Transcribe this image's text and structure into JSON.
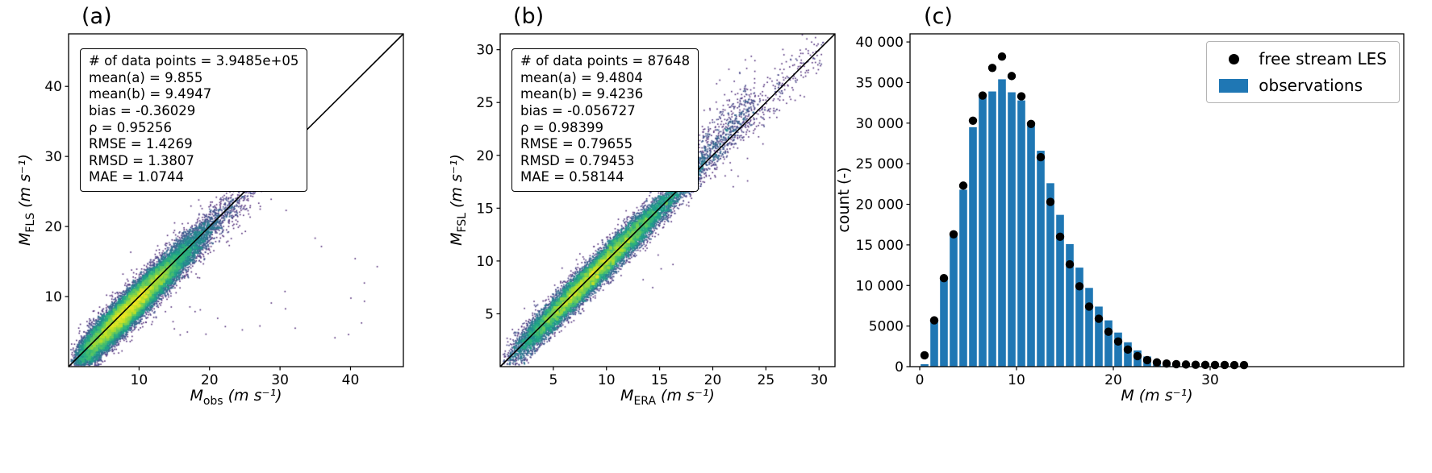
{
  "chart_data": [
    {
      "id": "a",
      "type": "scatter",
      "subtype": "density_scatter",
      "title": "(a)",
      "xlabel": {
        "var": "M",
        "sub": "obs",
        "units": "(m s⁻¹)"
      },
      "ylabel": {
        "var": "M",
        "sub": "FLS",
        "units": "(m s⁻¹)"
      },
      "xlim": [
        0,
        47.5
      ],
      "ylim": [
        0,
        47.5
      ],
      "xtick_values": [
        10,
        20,
        30,
        40
      ],
      "xtick_labels": [
        "10",
        "20",
        "30",
        "40"
      ],
      "ytick_values": [
        10,
        20,
        30,
        40
      ],
      "ytick_labels": [
        "10",
        "20",
        "30",
        "40"
      ],
      "identity_line": true,
      "colormap": "viridis",
      "stats_box": [
        "# of data points = 3.9485e+05",
        "mean(a) = 9.855",
        "mean(b) = 9.4947",
        "bias = -0.36029",
        "ρ = 0.95256",
        "RMSE = 1.4269",
        "RMSD = 1.3807",
        "MAE = 1.0744"
      ],
      "stats": {
        "n_points": 394850,
        "mean_a": 9.855,
        "mean_b": 9.4947,
        "bias": -0.36029,
        "rho": 0.95256,
        "rmse": 1.4269,
        "rmsd": 1.3807,
        "mae": 1.0744
      }
    },
    {
      "id": "b",
      "type": "scatter",
      "subtype": "density_scatter",
      "title": "(b)",
      "xlabel": {
        "var": "M",
        "sub": "ERA",
        "units": "(m s⁻¹)"
      },
      "ylabel": {
        "var": "M",
        "sub": "FSL",
        "units": "(m s⁻¹)"
      },
      "xlim": [
        0,
        31.5
      ],
      "ylim": [
        0,
        31.5
      ],
      "xtick_values": [
        5,
        10,
        15,
        20,
        25,
        30
      ],
      "xtick_labels": [
        "5",
        "10",
        "15",
        "20",
        "25",
        "30"
      ],
      "ytick_values": [
        5,
        10,
        15,
        20,
        25,
        30
      ],
      "ytick_labels": [
        "5",
        "10",
        "15",
        "20",
        "25",
        "30"
      ],
      "identity_line": true,
      "colormap": "viridis",
      "stats_box": [
        "# of data points = 87648",
        "mean(a) = 9.4804",
        "mean(b) = 9.4236",
        "bias = -0.056727",
        "ρ = 0.98399",
        "RMSE = 0.79655",
        "RMSD = 0.79453",
        "MAE = 0.58144"
      ],
      "stats": {
        "n_points": 87648,
        "mean_a": 9.4804,
        "mean_b": 9.4236,
        "bias": -0.056727,
        "rho": 0.98399,
        "rmse": 0.79655,
        "rmsd": 0.79453,
        "mae": 0.58144
      }
    },
    {
      "id": "c",
      "type": "bar",
      "title": "(c)",
      "xlabel": {
        "var": "M",
        "sub": "",
        "units": "(m s⁻¹)"
      },
      "ylabel_text": "count (-)",
      "xlim": [
        -1,
        50
      ],
      "ylim": [
        0,
        41000
      ],
      "xtick_values": [
        0,
        10,
        20,
        30
      ],
      "xtick_labels": [
        "0",
        "10",
        "20",
        "30"
      ],
      "ytick_values": [
        0,
        5000,
        10000,
        15000,
        20000,
        25000,
        30000,
        35000,
        40000
      ],
      "ytick_labels": [
        "0",
        "5000",
        "10 000",
        "15 000",
        "20 000",
        "25 000",
        "30 000",
        "35 000",
        "40 000"
      ],
      "bin_width": 1,
      "bin_centers": [
        0.5,
        1.5,
        2.5,
        3.5,
        4.5,
        5.5,
        6.5,
        7.5,
        8.5,
        9.5,
        10.5,
        11.5,
        12.5,
        13.5,
        14.5,
        15.5,
        16.5,
        17.5,
        18.5,
        19.5,
        20.5,
        21.5,
        22.5,
        23.5,
        24.5,
        25.5,
        26.5,
        27.5,
        28.5,
        29.5,
        30.5,
        31.5,
        32.5,
        33.5
      ],
      "series": [
        {
          "name": "free stream LES",
          "type": "scatter",
          "marker": "dot",
          "color": "#000000",
          "values": [
            1400,
            5700,
            10900,
            16300,
            22300,
            30300,
            33400,
            36800,
            38200,
            35800,
            33300,
            29900,
            25800,
            20300,
            16000,
            12600,
            9900,
            7400,
            5900,
            4300,
            3100,
            2100,
            1300,
            800,
            520,
            380,
            300,
            260,
            230,
            210,
            200,
            200,
            190,
            190
          ]
        },
        {
          "name": "observations",
          "type": "bar",
          "marker": "patch",
          "color": "#1f77b4",
          "values": [
            300,
            5600,
            10800,
            16100,
            21800,
            29500,
            33200,
            33900,
            35400,
            33800,
            32800,
            29900,
            26600,
            22600,
            18700,
            15100,
            12200,
            9700,
            7400,
            5700,
            4200,
            3000,
            2000,
            1250,
            750,
            480,
            300,
            200,
            140,
            100,
            70,
            50,
            40,
            30
          ]
        }
      ],
      "legend": {
        "position": "upper right"
      }
    }
  ]
}
